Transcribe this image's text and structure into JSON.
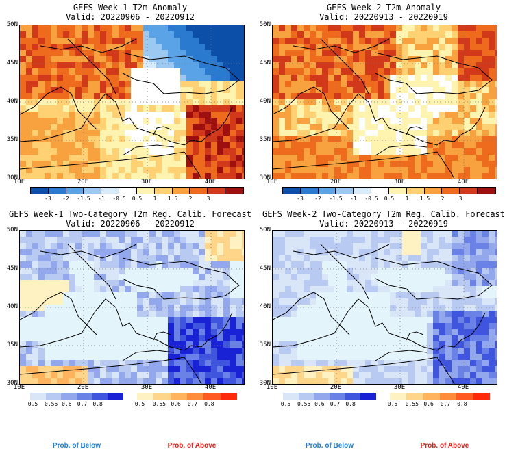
{
  "panels": [
    {
      "title1": "GEFS Week-1 T2m Anomaly",
      "title2": "Valid: 20220906 - 20220912"
    },
    {
      "title1": "GEFS Week-2 T2m Anomaly",
      "title2": "Valid: 20220913 - 20220919"
    },
    {
      "title1": "GEFS Week-1 Two-Category T2m Reg. Calib. Forecast",
      "title2": "Valid: 20220906 - 20220912"
    },
    {
      "title1": "GEFS Week-2 Two-Category T2m Reg. Calib. Forecast",
      "title2": "Valid: 20220913 - 20220919"
    }
  ],
  "axes": {
    "lat_labels": [
      "50N",
      "45N",
      "40N",
      "35N",
      "30N"
    ],
    "lon_labels": [
      "10E",
      "20E",
      "30E",
      "40E"
    ]
  },
  "anomaly_colorbar": {
    "ticks": [
      "-3",
      "-2",
      "-1.5",
      "-1",
      "-0.5",
      "0.5",
      "1",
      "1.5",
      "2",
      "3"
    ],
    "colors": [
      "#0b4fa8",
      "#2a7bd0",
      "#5aa3e6",
      "#9cc9f2",
      "#d6ecfb",
      "#ffffff",
      "#fff3b0",
      "#ffd173",
      "#f7a23f",
      "#ee6a1c",
      "#d2381a",
      "#9e1010"
    ]
  },
  "prob_colorbar": {
    "below_ticks": [
      "0.5",
      "0.55",
      "0.6",
      "0.7",
      "0.8"
    ],
    "above_ticks": [
      "0.5",
      "0.55",
      "0.6",
      "0.7",
      "0.8"
    ],
    "below_colors": [
      "#d9e6f7",
      "#b8c9f2",
      "#93a8ec",
      "#6a82e6",
      "#3f55de",
      "#1a22d6"
    ],
    "above_colors": [
      "#fff2c2",
      "#ffd58a",
      "#ffb35c",
      "#ff8c3a",
      "#ff5a1f",
      "#ff2a0a"
    ]
  },
  "legend": {
    "below": "Prob. of Below",
    "above": "Prob. of Above",
    "below_color": "#1e7fd8",
    "above_color": "#e0201a"
  }
}
